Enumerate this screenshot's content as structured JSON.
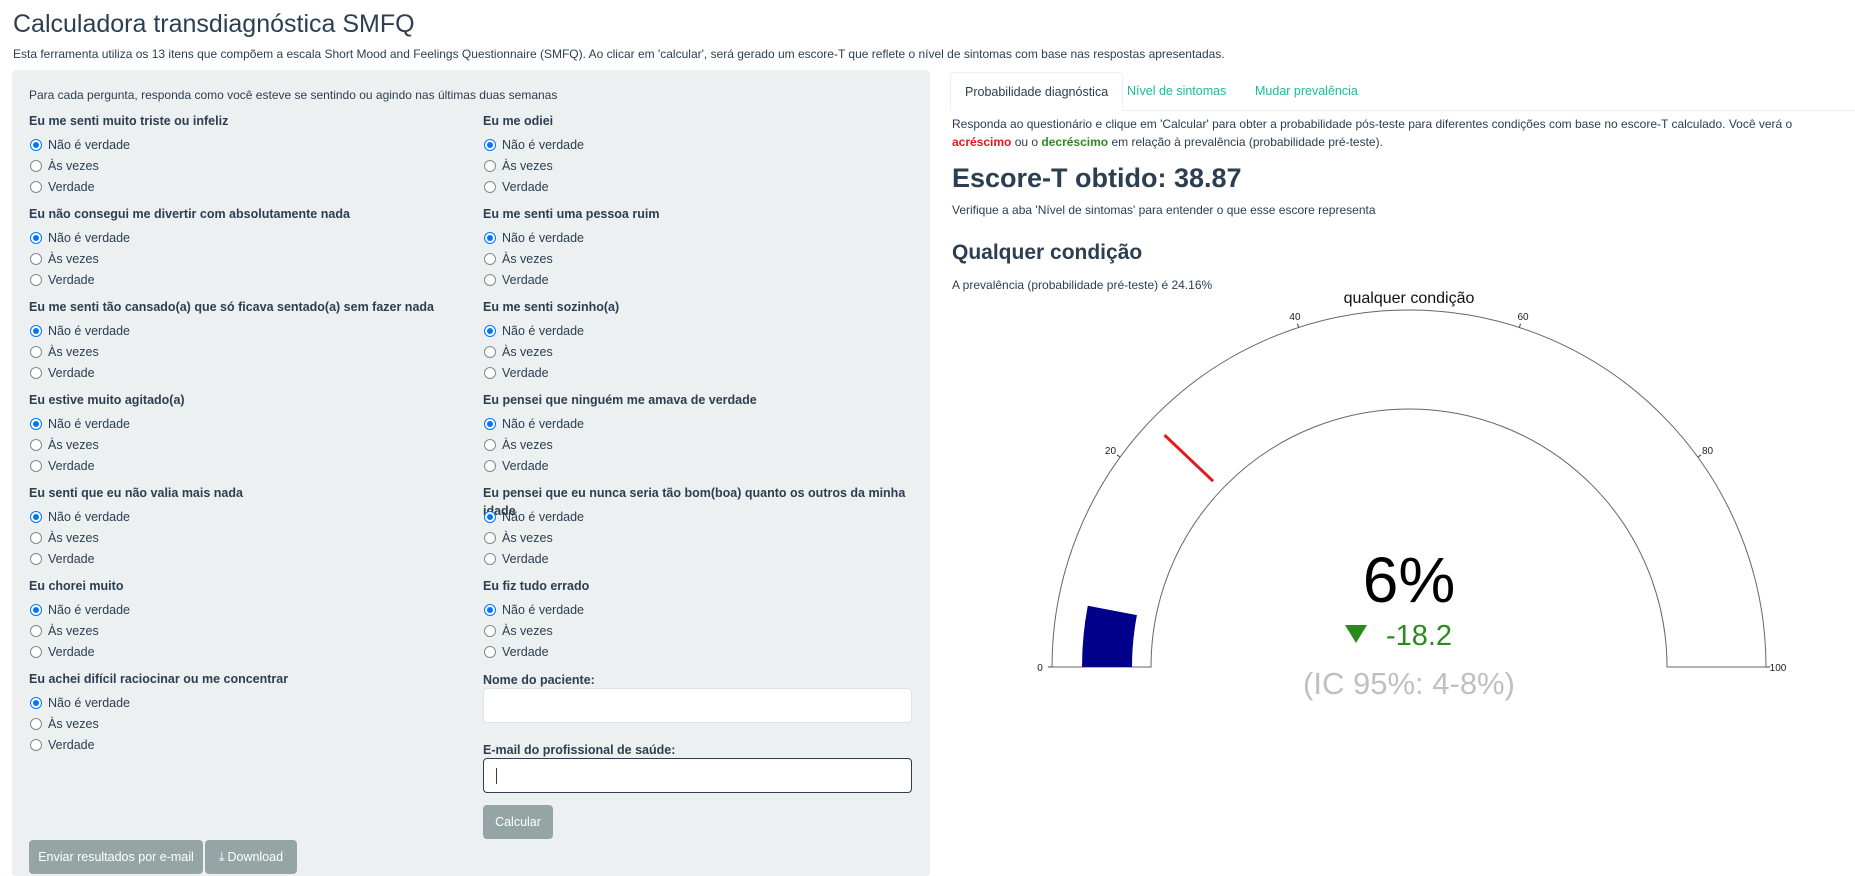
{
  "header": {
    "title": "Calculadora transdiagnóstica SMFQ",
    "subtitle": "Esta ferramenta utiliza os 13 itens que compõem a escala Short Mood and Feelings Questionnaire (SMFQ). Ao clicar em 'calcular', será gerado um escore-T que reflete o nível de sintomas com base nas respostas apresentadas."
  },
  "form": {
    "intro": "Para cada pergunta, responda como você esteve se sentindo ou agindo nas últimas duas semanas",
    "options": [
      "Não é verdade",
      "Às vezes",
      "Verdade"
    ],
    "col1": [
      {
        "label": "Eu me senti muito triste ou infeliz",
        "selected": 0
      },
      {
        "label": "Eu não consegui me divertir com absolutamente nada",
        "selected": 0
      },
      {
        "label": "Eu me senti tão cansado(a) que só ficava sentado(a) sem fazer nada",
        "selected": 0
      },
      {
        "label": "Eu estive muito agitado(a)",
        "selected": 0
      },
      {
        "label": "Eu senti que eu não valia mais nada",
        "selected": 0
      },
      {
        "label": "Eu chorei muito",
        "selected": 0
      },
      {
        "label": "Eu achei difícil raciocinar ou me concentrar",
        "selected": 0
      }
    ],
    "col2": [
      {
        "label": "Eu me odiei",
        "selected": 0
      },
      {
        "label": "Eu me senti uma pessoa ruim",
        "selected": 0
      },
      {
        "label": "Eu me senti sozinho(a)",
        "selected": 0
      },
      {
        "label": "Eu pensei que ninguém me amava de verdade",
        "selected": 0
      },
      {
        "label": "Eu pensei que eu nunca seria tão bom(boa) quanto os outros da minha idade",
        "selected": 0
      },
      {
        "label": "Eu fiz tudo errado",
        "selected": 0
      }
    ],
    "patient_label": "Nome do paciente:",
    "patient_value": "",
    "email_label": "E-mail do profissional de saúde:",
    "email_value": "",
    "calc_button": "Calcular",
    "send_button": "Enviar resultados por e-mail",
    "download_button": "Download"
  },
  "tabs": [
    "Probabilidade diagnóstica",
    "Nível de sintomas",
    "Mudar prevalência"
  ],
  "result": {
    "desc_pre": "Responda ao questionário e clique em 'Calcular' para obter a probabilidade pós-teste para diferentes condições com base no escore-T calculado. Você verá o ",
    "increase": "acréscimo",
    "desc_mid": " ou o ",
    "decrease": "decréscimo",
    "desc_post": " em relação à prevalência (probabilidade pré-teste).",
    "score_heading": "Escore-T obtido: 38.87",
    "score_note": "Verifique a aba 'Nível de sintomas' para entender o que esse escore representa",
    "condition_heading": "Qualquer condição",
    "prevalence_text": "A prevalência (probabilidade pré-teste) é 24.16%"
  },
  "chart_data": {
    "type": "gauge",
    "title": "qualquer condição",
    "value": 6,
    "value_label": "6%",
    "min": 0,
    "max": 100,
    "ticks": [
      0,
      20,
      40,
      60,
      80,
      100
    ],
    "reference": 24.16,
    "delta_label": "-18.2",
    "delta_direction": "down",
    "ci_label": "(IC 95%: 4-8%)",
    "colors": {
      "bar": "#00008b",
      "reference": "#e31a1c",
      "delta": "#2b8a1e",
      "ci": "#c0c0c0"
    }
  }
}
